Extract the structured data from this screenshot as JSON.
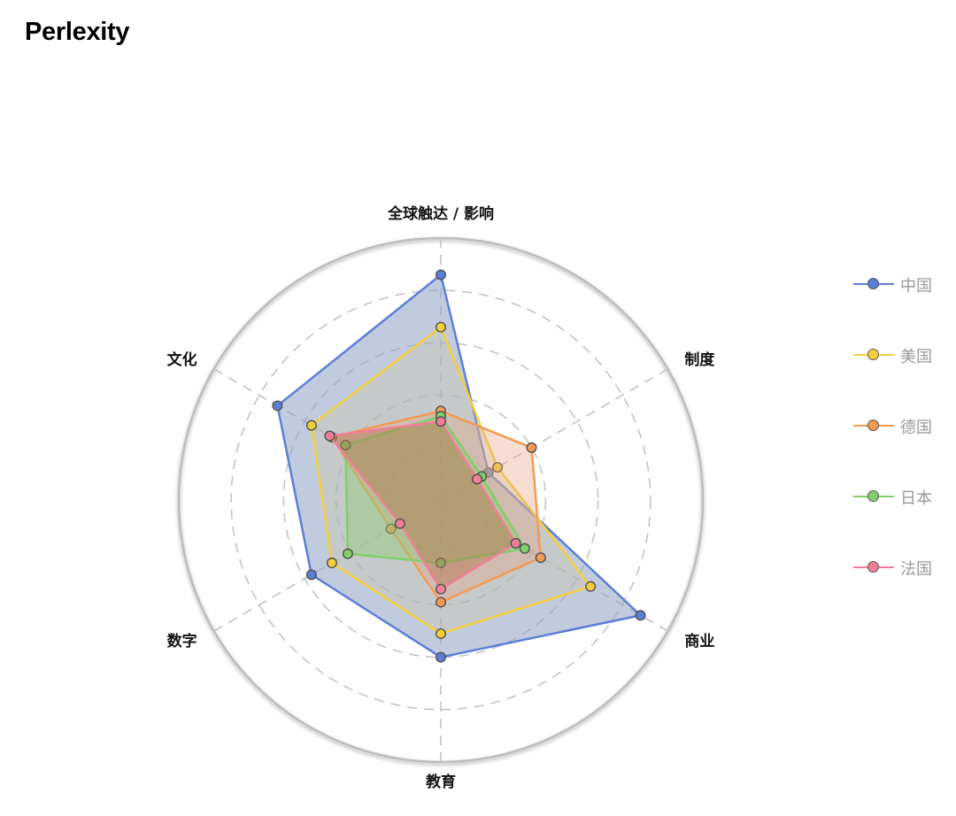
{
  "page": {
    "title": "Perlexity"
  },
  "colors": {
    "grid": "#c4c4c4",
    "outer_ring": "#bdbdbd"
  },
  "chart_data": {
    "type": "radar",
    "title": "",
    "indicators": [
      "全球触达 / 影响",
      "制度",
      "商业",
      "教育",
      "数字",
      "文化"
    ],
    "max": 100,
    "rings": 4,
    "grid": "dashed",
    "legend_position": "right",
    "series": [
      {
        "name": "中国",
        "values": [
          86,
          21,
          88,
          60,
          57,
          72
        ],
        "color": "#5b7fd6",
        "fill": "#95a6c7",
        "fill_opacity": 0.58
      },
      {
        "name": "美国",
        "values": [
          66,
          25,
          66,
          51,
          48,
          57
        ],
        "color": "#f5cf3a",
        "fill": "#d4c89a",
        "fill_opacity": 0.3
      },
      {
        "name": "德国",
        "values": [
          34,
          40,
          44,
          39,
          22,
          48
        ],
        "color": "#f39a55",
        "fill": "#e6a07e",
        "fill_opacity": 0.35
      },
      {
        "name": "日本",
        "values": [
          32,
          18,
          37,
          24,
          41,
          42
        ],
        "color": "#7fcf6a",
        "fill": "#8fcb78",
        "fill_opacity": 0.45
      },
      {
        "name": "法国",
        "values": [
          30,
          16,
          33,
          34,
          18,
          49
        ],
        "color": "#f07f97",
        "fill": "#b4704a",
        "fill_opacity": 0.45
      }
    ]
  }
}
